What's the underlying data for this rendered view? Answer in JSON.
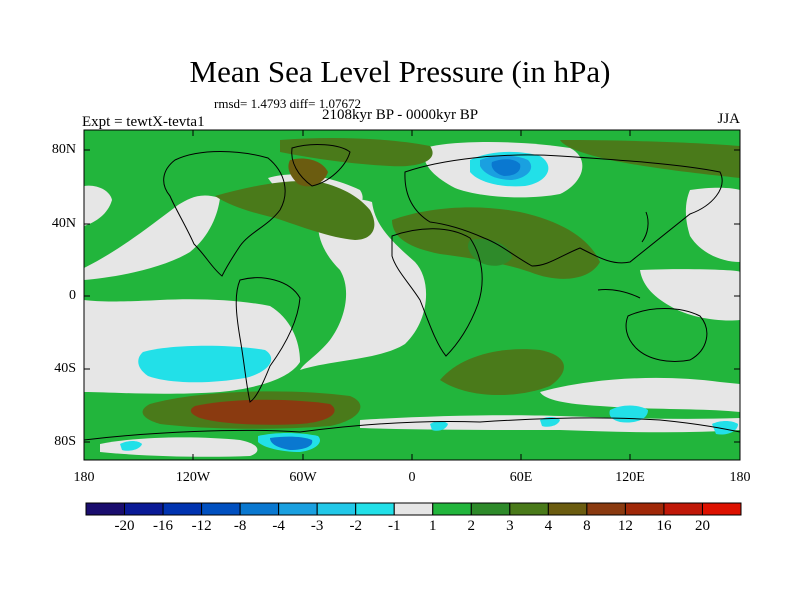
{
  "title": "Mean Sea Level Pressure (in hPa)",
  "stats": "rmsd= 1.4793 diff= 1.07672",
  "period": "2108kyr BP - 0000kyr BP",
  "experiment": "Expt = tewtX-tevta1",
  "season": "JJA",
  "axes": {
    "lat_ticks": [
      "80N",
      "40N",
      "0",
      "40S",
      "80S"
    ],
    "lon_ticks": [
      "180",
      "120W",
      "60W",
      "0",
      "60E",
      "120E",
      "180"
    ]
  },
  "colorbar": {
    "labels": [
      "-20",
      "-16",
      "-12",
      "-8",
      "-4",
      "-3",
      "-2",
      "-1",
      "1",
      "2",
      "3",
      "4",
      "8",
      "12",
      "16",
      "20"
    ],
    "colors": [
      "#1a0d6e",
      "#0a1a96",
      "#0033b0",
      "#0050c0",
      "#0a78d0",
      "#1aa0e0",
      "#22c8e8",
      "#22e0e8",
      "#e6e6e6",
      "#22b53c",
      "#2e8a2a",
      "#4a7a1a",
      "#6b5c10",
      "#8a3a10",
      "#a02808",
      "#c01808",
      "#dd1100"
    ]
  },
  "colors": {
    "neutral": "#e6e6e6",
    "green": "#22b53c",
    "dark_green": "#2e8a2a",
    "olive": "#4a7a1a",
    "brown": "#6b5c10",
    "rust": "#8a3a10",
    "cyan": "#22e0e8",
    "blue": "#1aa0e0",
    "dark_blue": "#0a78d0"
  }
}
